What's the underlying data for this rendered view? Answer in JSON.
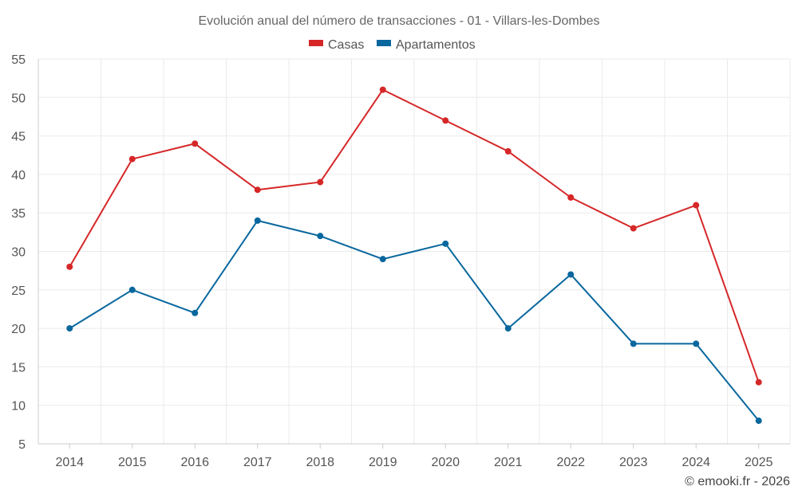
{
  "chart_data": {
    "type": "line",
    "title": "Evolución anual del número de transacciones - 01 - Villars-les-Dombes",
    "x": [
      "2014",
      "2015",
      "2016",
      "2017",
      "2018",
      "2019",
      "2020",
      "2021",
      "2022",
      "2023",
      "2024",
      "2025"
    ],
    "ylim": [
      5,
      55
    ],
    "yticks": [
      5,
      10,
      15,
      20,
      25,
      30,
      35,
      40,
      45,
      50,
      55
    ],
    "grid": true,
    "legend_position": "top-center",
    "series": [
      {
        "name": "Casas",
        "color": "#d62728",
        "values": [
          28,
          42,
          44,
          38,
          39,
          51,
          47,
          43,
          37,
          33,
          36,
          13
        ]
      },
      {
        "name": "Apartamentos",
        "color": "#08679e",
        "values": [
          20,
          25,
          22,
          34,
          32,
          29,
          31,
          20,
          27,
          18,
          18,
          8
        ]
      }
    ],
    "credit": "© emooki.fr - 2026"
  }
}
